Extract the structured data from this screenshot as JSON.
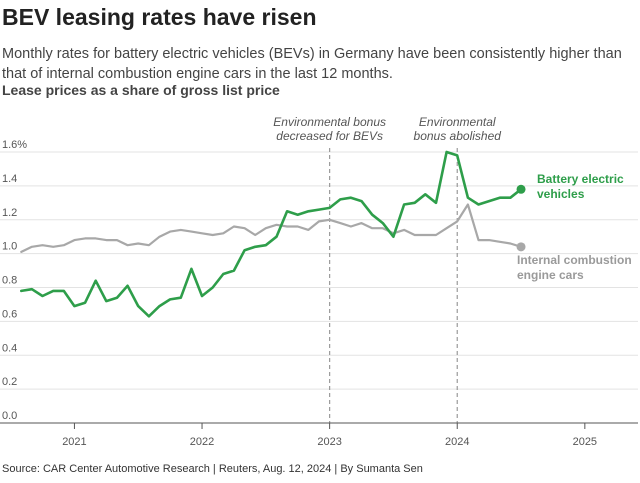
{
  "header": {
    "title": "BEV leasing rates have risen",
    "subtitle": "Monthly rates for battery electric vehicles (BEVs) in Germany have been consistently higher than that of internal combustion engine cars in the last 12 months."
  },
  "footer": {
    "source": "Source: CAR Center Automotive Research | Reuters, Aug. 12, 2024 | By Sumanta Sen"
  },
  "chart_data": {
    "type": "line",
    "title": "Lease prices as a share of gross list price",
    "xlabel": "",
    "ylabel": "",
    "ylim": [
      0,
      1.6
    ],
    "xlim": [
      "2020-06",
      "2025-06"
    ],
    "grid": true,
    "yticks": [
      {
        "value": 0.0,
        "label": "0.0"
      },
      {
        "value": 0.2,
        "label": "0.2"
      },
      {
        "value": 0.4,
        "label": "0.4"
      },
      {
        "value": 0.6,
        "label": "0.6"
      },
      {
        "value": 0.8,
        "label": "0.8"
      },
      {
        "value": 1.0,
        "label": "1.0"
      },
      {
        "value": 1.2,
        "label": "1.2"
      },
      {
        "value": 1.4,
        "label": "1.4"
      },
      {
        "value": 1.6,
        "label": "1.6%"
      }
    ],
    "xticks": [
      {
        "value": "2021",
        "label": "2021"
      },
      {
        "value": "2022",
        "label": "2022"
      },
      {
        "value": "2023",
        "label": "2023"
      },
      {
        "value": "2024",
        "label": "2024"
      },
      {
        "value": "2025",
        "label": "2025"
      }
    ],
    "annotations": [
      {
        "x": "2023-01",
        "lines": [
          "Environmental bonus",
          "decreased for BEVs"
        ]
      },
      {
        "x": "2024-01",
        "lines": [
          "Environmental",
          "bonus abolished"
        ]
      }
    ],
    "series": [
      {
        "name": "Battery electric vehicles",
        "label_lines": [
          "Battery electric",
          "vehicles"
        ],
        "color": "#2e9e4a",
        "x": [
          "2020-08",
          "2020-09",
          "2020-10",
          "2020-11",
          "2020-12",
          "2021-01",
          "2021-02",
          "2021-03",
          "2021-04",
          "2021-05",
          "2021-06",
          "2021-07",
          "2021-08",
          "2021-09",
          "2021-10",
          "2021-11",
          "2021-12",
          "2022-01",
          "2022-02",
          "2022-03",
          "2022-04",
          "2022-05",
          "2022-06",
          "2022-07",
          "2022-08",
          "2022-09",
          "2022-10",
          "2022-11",
          "2022-12",
          "2023-01",
          "2023-02",
          "2023-03",
          "2023-04",
          "2023-05",
          "2023-06",
          "2023-07",
          "2023-08",
          "2023-09",
          "2023-10",
          "2023-11",
          "2023-12",
          "2024-01",
          "2024-02",
          "2024-03",
          "2024-04",
          "2024-05",
          "2024-06",
          "2024-07"
        ],
        "values": [
          0.78,
          0.79,
          0.75,
          0.78,
          0.78,
          0.69,
          0.71,
          0.84,
          0.72,
          0.74,
          0.81,
          0.69,
          0.63,
          0.69,
          0.73,
          0.74,
          0.91,
          0.75,
          0.8,
          0.88,
          0.9,
          1.02,
          1.04,
          1.05,
          1.1,
          1.25,
          1.23,
          1.25,
          1.26,
          1.27,
          1.32,
          1.33,
          1.31,
          1.23,
          1.18,
          1.1,
          1.29,
          1.3,
          1.35,
          1.3,
          1.6,
          1.58,
          1.33,
          1.29,
          1.31,
          1.33,
          1.33,
          1.38
        ]
      },
      {
        "name": "Internal combustion engine cars",
        "label_lines": [
          "Internal combustion",
          "engine cars"
        ],
        "color": "#a8a8a8",
        "x": [
          "2020-08",
          "2020-09",
          "2020-10",
          "2020-11",
          "2020-12",
          "2021-01",
          "2021-02",
          "2021-03",
          "2021-04",
          "2021-05",
          "2021-06",
          "2021-07",
          "2021-08",
          "2021-09",
          "2021-10",
          "2021-11",
          "2021-12",
          "2022-01",
          "2022-02",
          "2022-03",
          "2022-04",
          "2022-05",
          "2022-06",
          "2022-07",
          "2022-08",
          "2022-09",
          "2022-10",
          "2022-11",
          "2022-12",
          "2023-01",
          "2023-02",
          "2023-03",
          "2023-04",
          "2023-05",
          "2023-06",
          "2023-07",
          "2023-08",
          "2023-09",
          "2023-10",
          "2023-11",
          "2023-12",
          "2024-01",
          "2024-02",
          "2024-03",
          "2024-04",
          "2024-05",
          "2024-06",
          "2024-07"
        ],
        "values": [
          1.01,
          1.04,
          1.05,
          1.04,
          1.05,
          1.08,
          1.09,
          1.09,
          1.08,
          1.08,
          1.05,
          1.06,
          1.05,
          1.1,
          1.13,
          1.14,
          1.13,
          1.12,
          1.11,
          1.12,
          1.16,
          1.15,
          1.11,
          1.15,
          1.17,
          1.16,
          1.16,
          1.14,
          1.19,
          1.2,
          1.18,
          1.16,
          1.18,
          1.15,
          1.15,
          1.12,
          1.14,
          1.11,
          1.11,
          1.11,
          1.15,
          1.19,
          1.29,
          1.08,
          1.08,
          1.07,
          1.06,
          1.04
        ]
      }
    ]
  }
}
